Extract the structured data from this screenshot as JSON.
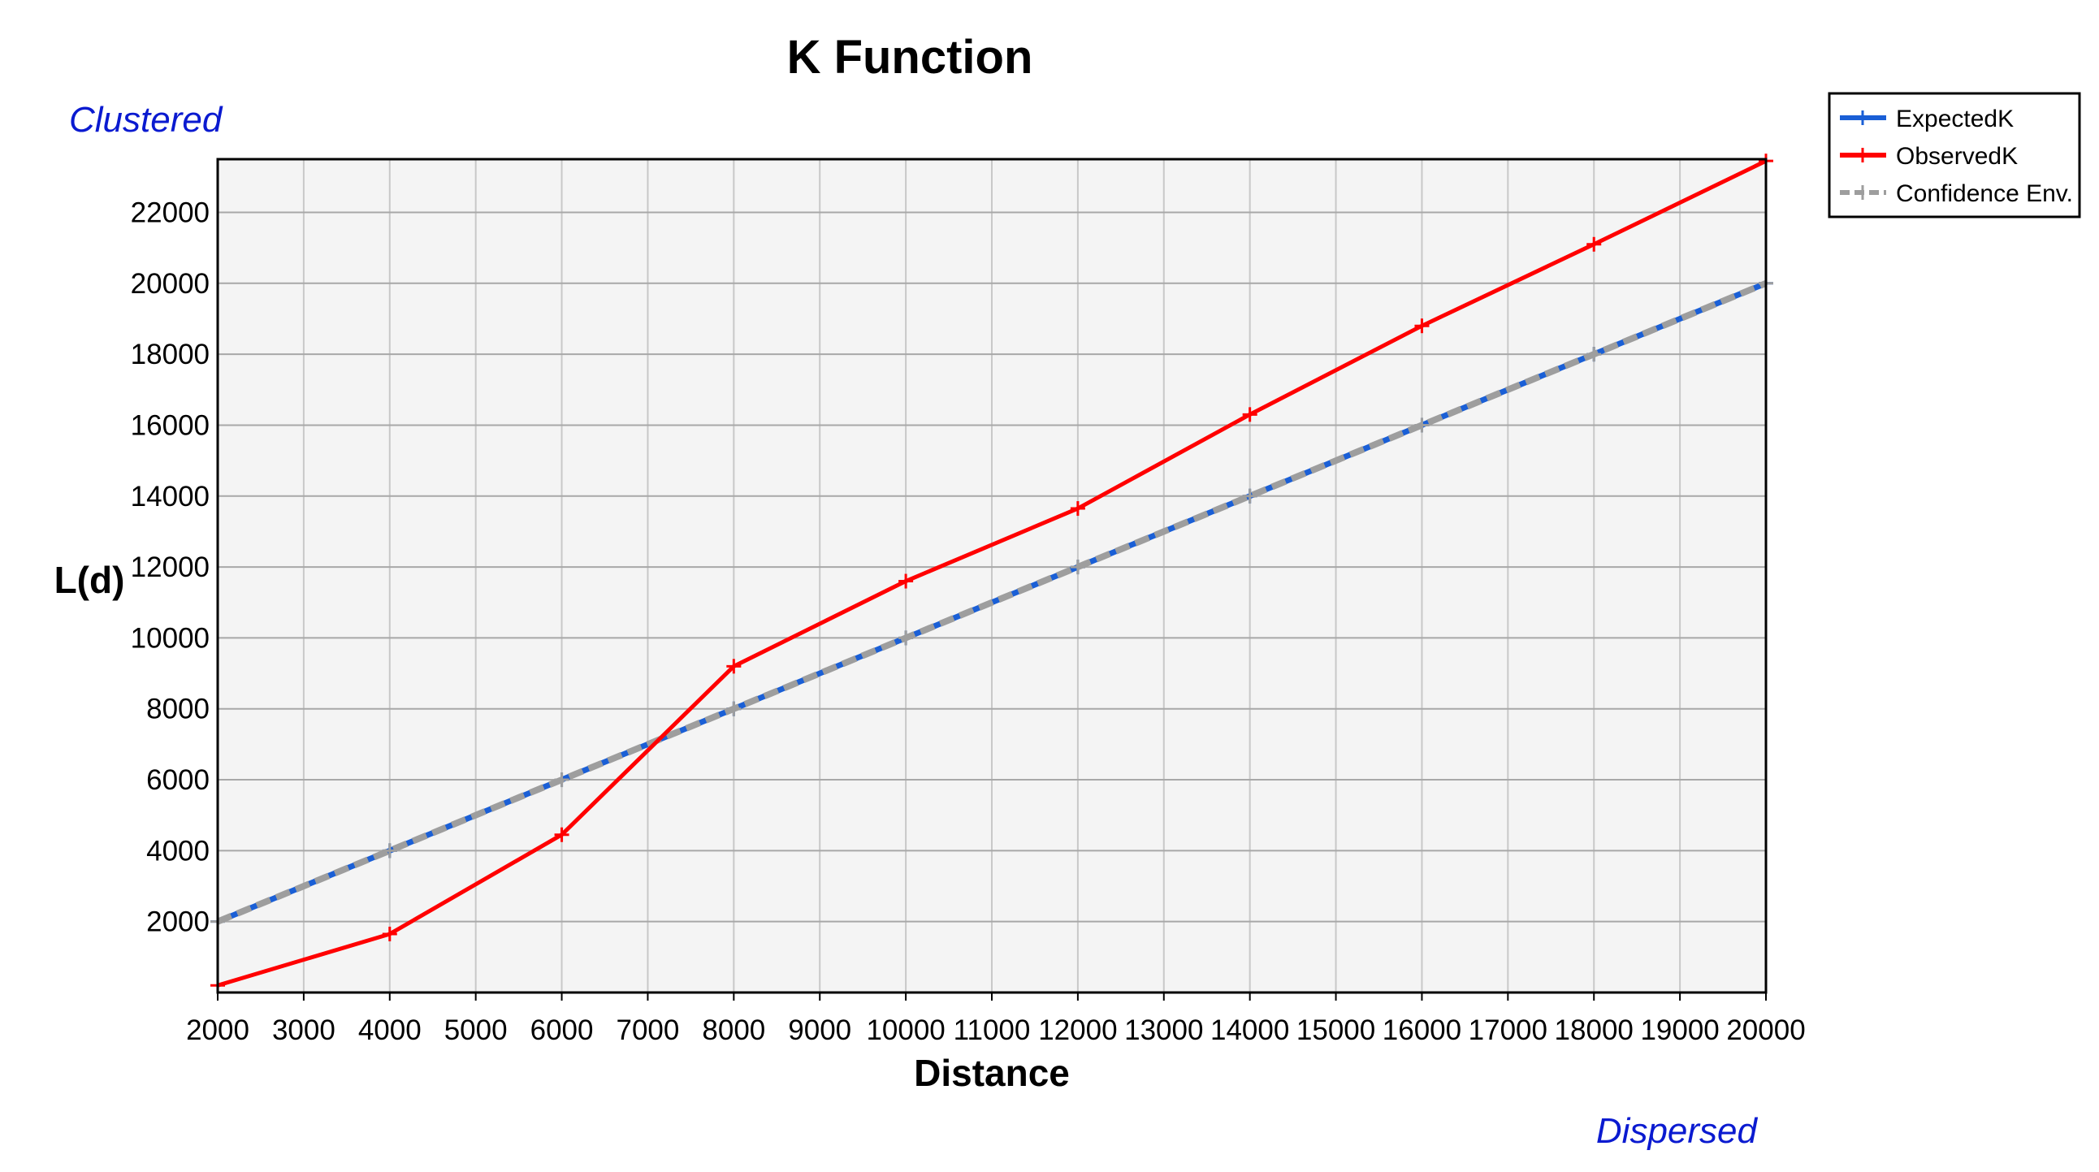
{
  "chart_data": {
    "type": "line",
    "title": "K Function",
    "xlabel": "Distance",
    "ylabel": "L(d)",
    "xlim": [
      2000,
      20000
    ],
    "ylim": [
      0,
      23500
    ],
    "x_ticks": [
      2000,
      3000,
      4000,
      5000,
      6000,
      7000,
      8000,
      9000,
      10000,
      11000,
      12000,
      13000,
      14000,
      15000,
      16000,
      17000,
      18000,
      19000,
      20000
    ],
    "y_ticks": [
      2000,
      4000,
      6000,
      8000,
      10000,
      12000,
      14000,
      16000,
      18000,
      20000,
      22000
    ],
    "grid": true,
    "legend_position": "top-right",
    "annotations": {
      "top_left": "Clustered",
      "bottom_right": "Dispersed"
    },
    "series": [
      {
        "name": "ExpectedK",
        "color": "#1a5fd6",
        "style": "solid",
        "x": [
          2000,
          4000,
          6000,
          8000,
          10000,
          12000,
          14000,
          16000,
          18000,
          20000
        ],
        "y": [
          2000,
          4000,
          6000,
          8000,
          10000,
          12000,
          14000,
          16000,
          18000,
          20000
        ]
      },
      {
        "name": "ObservedK",
        "color": "#ff0000",
        "style": "solid",
        "x": [
          2000,
          4000,
          6000,
          8000,
          10000,
          12000,
          14000,
          16000,
          18000,
          20000
        ],
        "y": [
          200,
          1650,
          4450,
          9200,
          11600,
          13650,
          16300,
          18800,
          21100,
          23450
        ]
      },
      {
        "name": "Confidence Env.",
        "color": "#9e9e9e",
        "style": "dashed",
        "x": [
          2000,
          4000,
          6000,
          8000,
          10000,
          12000,
          14000,
          16000,
          18000,
          20000
        ],
        "y": [
          2000,
          4000,
          6000,
          8000,
          10000,
          12000,
          14000,
          16000,
          18000,
          20000
        ]
      }
    ]
  }
}
